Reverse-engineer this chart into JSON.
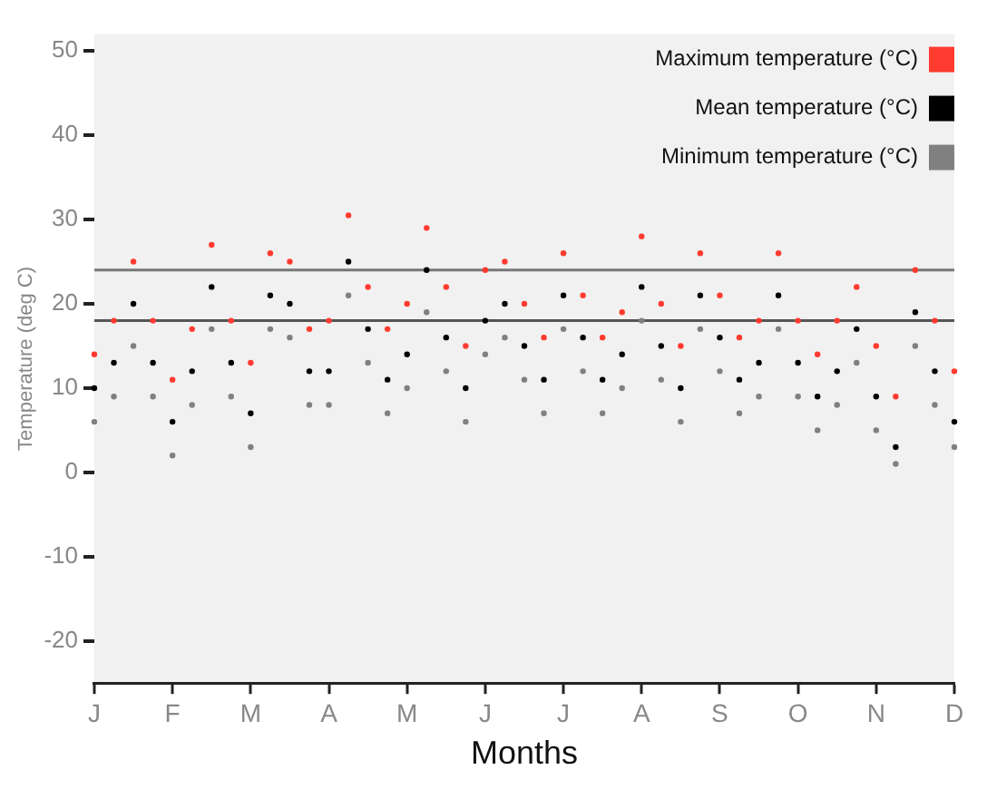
{
  "chart_data": {
    "type": "scatter",
    "xlabel": "Months",
    "ylabel": "Temperature (deg C)",
    "categories": [
      "J",
      null,
      null,
      null,
      "F",
      null,
      null,
      null,
      "M",
      null,
      null,
      null,
      "A",
      null,
      null,
      null,
      "M",
      null,
      null,
      null,
      "J",
      null,
      null,
      null,
      "J",
      null,
      null,
      null,
      "A",
      null,
      null,
      null,
      "S",
      null,
      null,
      null,
      "O",
      null,
      null,
      null,
      "N",
      null,
      null,
      null,
      "D"
    ],
    "series": [
      {
        "name": "Maximum temperature (°C)",
        "color": "#ff3b2f",
        "values": [
          14,
          18,
          25,
          18,
          11,
          17,
          27,
          18,
          13,
          26,
          25,
          17,
          18,
          30.5,
          22,
          17,
          20,
          29,
          22,
          15,
          24,
          25,
          20,
          16,
          26,
          21,
          16,
          19,
          28,
          20,
          15,
          26,
          21,
          16,
          18,
          26,
          18,
          14,
          18,
          22,
          15,
          9,
          24,
          18,
          12
        ]
      },
      {
        "name": "Mean temperature (°C)",
        "color": "#000000",
        "values": [
          10,
          13,
          20,
          13,
          6,
          12,
          22,
          13,
          7,
          21,
          20,
          12,
          12,
          25,
          17,
          11,
          14,
          24,
          16,
          10,
          18,
          20,
          15,
          11,
          21,
          16,
          11,
          14,
          22,
          15,
          10,
          21,
          16,
          11,
          13,
          21,
          13,
          9,
          12,
          17,
          9,
          3,
          19,
          12,
          6
        ]
      },
      {
        "name": "Minimum temperature (°C)",
        "color": "#808080",
        "values": [
          6,
          9,
          15,
          9,
          2,
          8,
          17,
          9,
          3,
          17,
          16,
          8,
          8,
          21,
          13,
          7,
          10,
          19,
          12,
          6,
          14,
          16,
          11,
          7,
          17,
          12,
          7,
          10,
          18,
          11,
          6,
          17,
          12,
          7,
          9,
          17,
          9,
          5,
          8,
          13,
          5,
          1,
          15,
          8,
          3
        ]
      }
    ],
    "ylim": [
      -25,
      52
    ],
    "yticks": [
      -20,
      -10,
      0,
      10,
      20,
      30,
      40,
      50
    ],
    "ref_lines": [
      {
        "axis": "y",
        "value": 24,
        "color": "#777777"
      },
      {
        "axis": "y",
        "value": 18,
        "color": "#555555"
      }
    ],
    "grid": false,
    "legend": "top right",
    "marker": "circle"
  }
}
